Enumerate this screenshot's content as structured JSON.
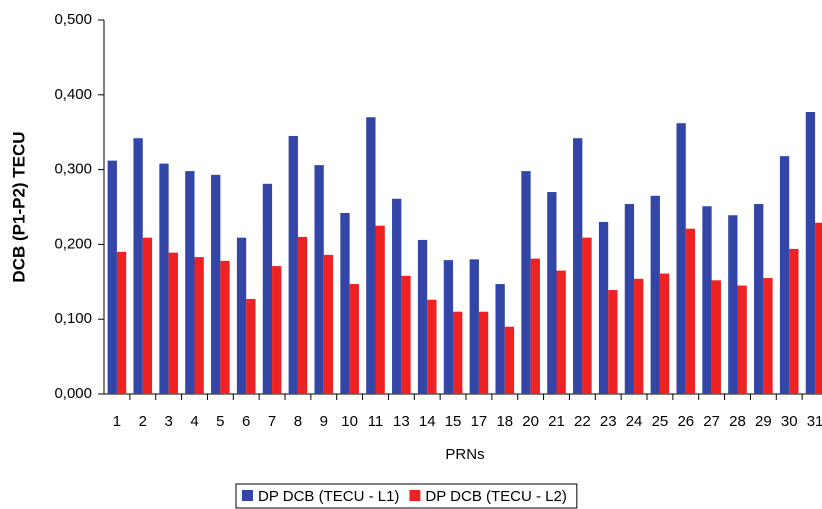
{
  "chart_data": {
    "type": "bar",
    "y_label": "DCB (P1-P2) TECU",
    "x_label": "PRNs",
    "categories": [
      "1",
      "2",
      "3",
      "4",
      "5",
      "6",
      "7",
      "8",
      "9",
      "10",
      "11",
      "13",
      "14",
      "15",
      "17",
      "18",
      "20",
      "21",
      "22",
      "23",
      "24",
      "25",
      "26",
      "27",
      "28",
      "29",
      "30",
      "31"
    ],
    "series": [
      {
        "name": "DP DCB (TECU - L1)",
        "color": "#3346a8",
        "values": [
          0.312,
          0.342,
          0.308,
          0.298,
          0.293,
          0.209,
          0.281,
          0.345,
          0.306,
          0.242,
          0.37,
          0.261,
          0.206,
          0.179,
          0.18,
          0.147,
          0.298,
          0.27,
          0.342,
          0.23,
          0.254,
          0.265,
          0.362,
          0.251,
          0.239,
          0.254,
          0.318,
          0.377
        ]
      },
      {
        "name": "DP DCB (TECU - L2)",
        "color": "#ee2222",
        "values": [
          0.19,
          0.209,
          0.189,
          0.183,
          0.178,
          0.127,
          0.171,
          0.21,
          0.186,
          0.147,
          0.225,
          0.158,
          0.126,
          0.11,
          0.11,
          0.09,
          0.181,
          0.165,
          0.209,
          0.139,
          0.154,
          0.161,
          0.221,
          0.152,
          0.145,
          0.155,
          0.194,
          0.229
        ]
      }
    ],
    "ylim": [
      0,
      0.5
    ],
    "yticks": [
      {
        "value": 0,
        "label": "0,000"
      },
      {
        "value": 0.1,
        "label": "0,100"
      },
      {
        "value": 0.2,
        "label": "0,200"
      },
      {
        "value": 0.3,
        "label": "0,300"
      },
      {
        "value": 0.4,
        "label": "0,400"
      },
      {
        "value": 0.5,
        "label": "0,500"
      }
    ],
    "legend": "bottom"
  }
}
